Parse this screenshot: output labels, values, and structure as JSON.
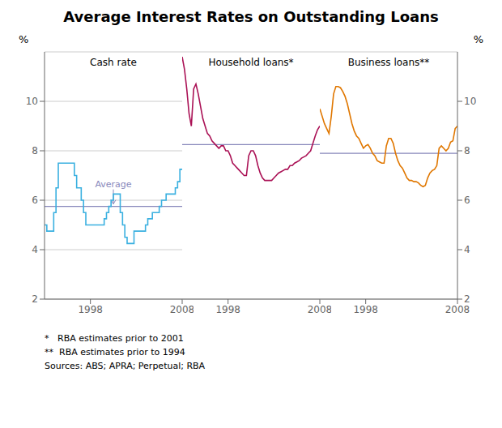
{
  "title": "Average Interest Rates on Outstanding Loans",
  "notes": [
    "*   RBA estimates prior to 2001",
    "**  RBA estimates prior to 1994",
    "Sources: ABS; APRA; Perpetual; RBA"
  ],
  "chart_data": [
    {
      "type": "line",
      "title": "Cash rate",
      "line_style": "step",
      "color": "#3ab0e0",
      "x": [
        1993.0,
        1993.25,
        1993.5,
        1993.75,
        1994.0,
        1994.25,
        1994.5,
        1994.75,
        1995.0,
        1995.25,
        1995.5,
        1995.75,
        1996.0,
        1996.25,
        1996.5,
        1996.75,
        1997.0,
        1997.25,
        1997.5,
        1997.75,
        1998.0,
        1998.25,
        1998.5,
        1998.75,
        1999.0,
        1999.25,
        1999.5,
        1999.75,
        2000.0,
        2000.25,
        2000.5,
        2000.75,
        2001.0,
        2001.25,
        2001.5,
        2001.75,
        2002.0,
        2002.25,
        2002.5,
        2002.75,
        2003.0,
        2003.25,
        2003.5,
        2003.75,
        2004.0,
        2004.25,
        2004.5,
        2004.75,
        2005.0,
        2005.25,
        2005.5,
        2005.75,
        2006.0,
        2006.25,
        2006.5,
        2006.75,
        2007.0,
        2007.25,
        2007.5,
        2007.75,
        2008.0
      ],
      "values": [
        5.0,
        4.75,
        4.75,
        4.75,
        5.5,
        6.5,
        7.5,
        7.5,
        7.5,
        7.5,
        7.5,
        7.5,
        7.5,
        7.0,
        6.5,
        6.5,
        6.0,
        5.5,
        5.0,
        5.0,
        5.0,
        5.0,
        5.0,
        5.0,
        5.0,
        5.0,
        5.25,
        5.5,
        5.75,
        6.0,
        6.25,
        6.25,
        6.25,
        5.5,
        5.0,
        4.5,
        4.25,
        4.25,
        4.25,
        4.75,
        4.75,
        4.75,
        4.75,
        4.75,
        5.0,
        5.25,
        5.25,
        5.5,
        5.5,
        5.5,
        5.75,
        6.0,
        6.0,
        6.25,
        6.25,
        6.25,
        6.25,
        6.5,
        6.75,
        7.25,
        7.25
      ],
      "average": {
        "value": 5.75,
        "label": "Average",
        "color": "#8888bb"
      },
      "xlim": [
        1993,
        2008
      ],
      "xticks": [
        1998,
        2008
      ],
      "ylim": [
        2,
        12
      ],
      "yticks": [
        2,
        4,
        6,
        8,
        10
      ],
      "ylabel": "%",
      "grid": true
    },
    {
      "type": "line",
      "title": "Household loans*",
      "color": "#aa1155",
      "x": [
        1993.0,
        1993.25,
        1993.5,
        1993.75,
        1994.0,
        1994.25,
        1994.5,
        1994.75,
        1995.0,
        1995.25,
        1995.5,
        1995.75,
        1996.0,
        1996.25,
        1996.5,
        1996.75,
        1997.0,
        1997.25,
        1997.5,
        1997.75,
        1998.0,
        1998.25,
        1998.5,
        1998.75,
        1999.0,
        1999.25,
        1999.5,
        1999.75,
        2000.0,
        2000.25,
        2000.5,
        2000.75,
        2001.0,
        2001.25,
        2001.5,
        2001.75,
        2002.0,
        2002.25,
        2002.5,
        2002.75,
        2003.0,
        2003.25,
        2003.5,
        2003.75,
        2004.0,
        2004.25,
        2004.5,
        2004.75,
        2005.0,
        2005.25,
        2005.5,
        2005.75,
        2006.0,
        2006.25,
        2006.5,
        2006.75,
        2007.0,
        2007.25,
        2007.5,
        2007.75,
        2008.0
      ],
      "values": [
        11.8,
        11.3,
        10.5,
        9.5,
        9.0,
        10.5,
        10.7,
        10.3,
        9.8,
        9.3,
        9.0,
        8.7,
        8.6,
        8.4,
        8.3,
        8.2,
        8.1,
        8.2,
        8.2,
        8.0,
        8.0,
        7.8,
        7.5,
        7.4,
        7.3,
        7.2,
        7.1,
        7.0,
        7.0,
        7.8,
        8.0,
        8.0,
        7.8,
        7.4,
        7.1,
        6.9,
        6.8,
        6.8,
        6.8,
        6.8,
        6.9,
        7.0,
        7.1,
        7.15,
        7.2,
        7.25,
        7.25,
        7.4,
        7.4,
        7.5,
        7.55,
        7.6,
        7.7,
        7.75,
        7.8,
        7.9,
        8.0,
        8.3,
        8.6,
        8.85,
        9.0
      ],
      "average": {
        "value": 8.25,
        "color": "#8888bb"
      },
      "xlim": [
        1993,
        2008
      ],
      "xticks": [
        1998,
        2008
      ],
      "ylim": [
        2,
        12
      ],
      "yticks": [
        2,
        4,
        6,
        8,
        10
      ],
      "grid": true,
      "tick_labels": "x"
    },
    {
      "type": "line",
      "title": "Business loans**",
      "color": "#e07700",
      "x": [
        1993.0,
        1993.25,
        1993.5,
        1993.75,
        1994.0,
        1994.25,
        1994.5,
        1994.75,
        1995.0,
        1995.25,
        1995.5,
        1995.75,
        1996.0,
        1996.25,
        1996.5,
        1996.75,
        1997.0,
        1997.25,
        1997.5,
        1997.75,
        1998.0,
        1998.25,
        1998.5,
        1998.75,
        1999.0,
        1999.25,
        1999.5,
        1999.75,
        2000.0,
        2000.25,
        2000.5,
        2000.75,
        2001.0,
        2001.25,
        2001.5,
        2001.75,
        2002.0,
        2002.25,
        2002.5,
        2002.75,
        2003.0,
        2003.25,
        2003.5,
        2003.75,
        2004.0,
        2004.25,
        2004.5,
        2004.75,
        2005.0,
        2005.25,
        2005.5,
        2005.75,
        2006.0,
        2006.25,
        2006.5,
        2006.75,
        2007.0,
        2007.25,
        2007.5,
        2007.75,
        2008.0
      ],
      "values": [
        9.7,
        9.4,
        9.1,
        8.9,
        8.7,
        9.4,
        10.3,
        10.6,
        10.6,
        10.55,
        10.4,
        10.2,
        9.9,
        9.5,
        9.1,
        8.8,
        8.6,
        8.5,
        8.3,
        8.1,
        8.2,
        8.25,
        8.1,
        7.9,
        7.8,
        7.6,
        7.55,
        7.5,
        7.5,
        8.2,
        8.5,
        8.5,
        8.3,
        7.9,
        7.6,
        7.4,
        7.3,
        7.1,
        6.9,
        6.8,
        6.8,
        6.75,
        6.75,
        6.7,
        6.6,
        6.55,
        6.6,
        6.9,
        7.1,
        7.2,
        7.25,
        7.4,
        8.1,
        8.2,
        8.1,
        8.0,
        8.1,
        8.35,
        8.4,
        8.9,
        9.0
      ],
      "average": {
        "value": 7.9,
        "color": "#8888bb"
      },
      "xlim": [
        1993,
        2008
      ],
      "xticks": [
        1998,
        2008
      ],
      "ylim": [
        2,
        12
      ],
      "yticks": [
        2,
        4,
        6,
        8,
        10
      ],
      "ylabel": "%",
      "grid": true
    }
  ]
}
